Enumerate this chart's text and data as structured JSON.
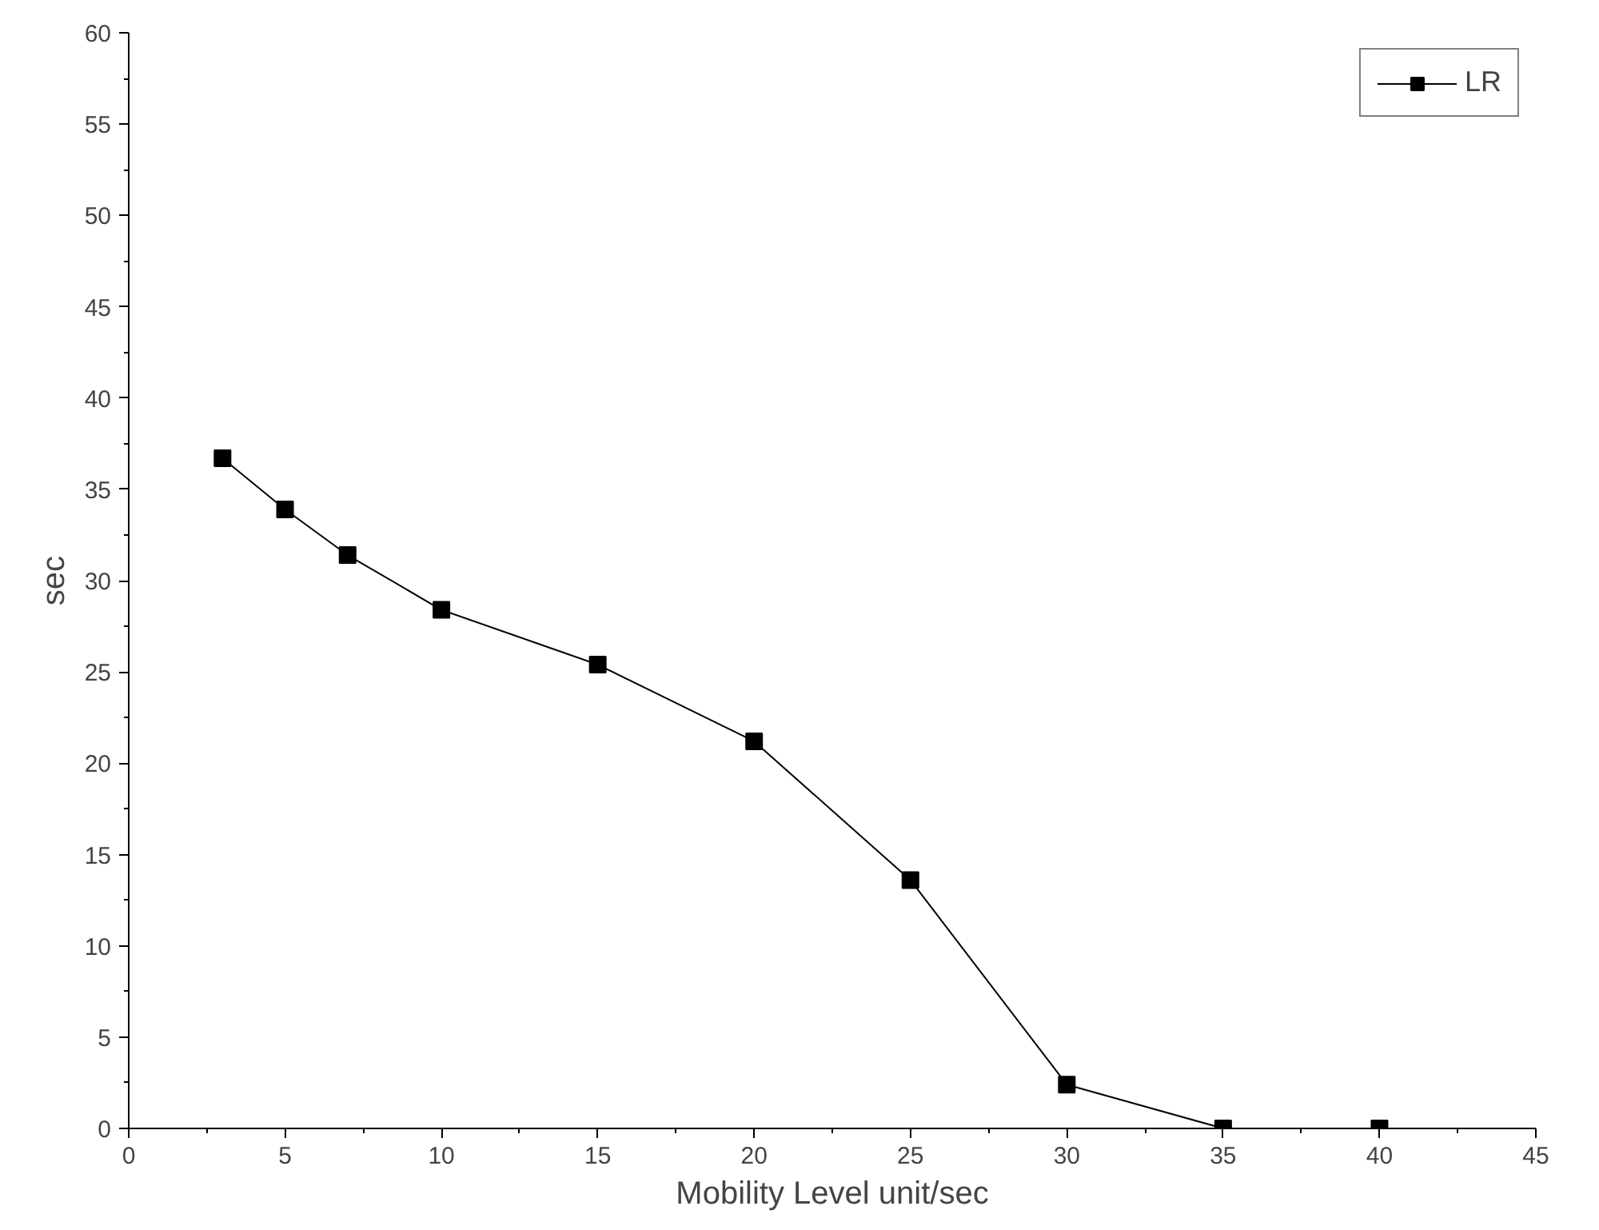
{
  "chart_data": {
    "type": "line",
    "xlabel": "Mobility Level unit/sec",
    "ylabel": "sec",
    "x": [
      3,
      5,
      7,
      10,
      15,
      20,
      25,
      30,
      35,
      40
    ],
    "series": [
      {
        "name": "LR",
        "color": "#000000",
        "values": [
          36.7,
          33.9,
          31.4,
          28.4,
          25.4,
          21.2,
          13.6,
          2.4,
          0,
          0
        ]
      }
    ],
    "xlim": [
      0,
      45
    ],
    "xticks": [
      0,
      5,
      10,
      15,
      20,
      25,
      30,
      35,
      40,
      45
    ],
    "ylim": [
      0,
      60
    ],
    "yticks": [
      0,
      5,
      10,
      15,
      20,
      25,
      30,
      35,
      40,
      45,
      50,
      55,
      60
    ],
    "grid": false,
    "legend": "top right",
    "marker": "square",
    "line_style": "solid"
  }
}
